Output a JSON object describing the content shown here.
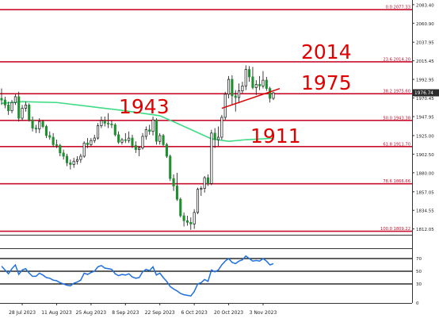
{
  "chart_data": [
    {
      "type": "candlestick",
      "title": "",
      "instrument": "",
      "y_axis_ticks": [
        "2083.40",
        "2060.90",
        "2037.95",
        "2015.45",
        "1992.95",
        "1970.45",
        "1947.95",
        "1925.00",
        "1902.50",
        "1880.00",
        "1857.05",
        "1834.55",
        "1812.05"
      ],
      "ylim": [
        1805,
        2089
      ],
      "current_price_label": "1976.74",
      "current_price": 1976.74,
      "x_axis_labels": [
        "28 Jul 2023",
        "11 Aug 2023",
        "25 Aug 2023",
        "8 Sep 2023",
        "22 Sep 2023",
        "6 Oct 2023",
        "20 Oct 2023",
        "3 Nov 2023"
      ],
      "x_axis_dates": [
        "2023-07-28",
        "2023-08-11",
        "2023-08-25",
        "2023-09-08",
        "2023-09-22",
        "2023-10-06",
        "2023-10-20",
        "2023-11-03"
      ],
      "fibonacci_levels": [
        {
          "label": "0.0 2077.33",
          "value": 2077.33
        },
        {
          "label": "23.6 2014.20",
          "value": 2014.2
        },
        {
          "label": "38.2 1975.60",
          "value": 1975.6
        },
        {
          "label": "50.0 1943.38",
          "value": 1943.38
        },
        {
          "label": "61.8 1911.70",
          "value": 1911.7
        },
        {
          "label": "78.6 1866.66",
          "value": 1866.66
        },
        {
          "label": "100.0 1809.22",
          "value": 1809.22
        }
      ],
      "annotations": [
        {
          "text": "2014",
          "value": 2014
        },
        {
          "text": "1975",
          "value": 1975
        },
        {
          "text": "1943",
          "value": 1943
        },
        {
          "text": "1911",
          "value": 1911
        }
      ],
      "moving_average_color": "#3ddc84",
      "up_color": "#1e8f2e",
      "down_color": "#1e8f2e",
      "level_color": "#c8102e",
      "annotation_color": "#e00000",
      "trendline": {
        "start": {
          "date": "2023-10-18",
          "value": 1958
        },
        "end": {
          "date": "2023-11-08",
          "value": 1978
        },
        "color": "#e00000"
      },
      "candles": [
        {
          "d": "2023-07-20",
          "o": 1970,
          "h": 1982,
          "l": 1962,
          "c": 1968
        },
        {
          "d": "2023-07-21",
          "o": 1968,
          "h": 1972,
          "l": 1958,
          "c": 1962
        },
        {
          "d": "2023-07-24",
          "o": 1962,
          "h": 1966,
          "l": 1950,
          "c": 1955
        },
        {
          "d": "2023-07-25",
          "o": 1955,
          "h": 1968,
          "l": 1952,
          "c": 1965
        },
        {
          "d": "2023-07-26",
          "o": 1965,
          "h": 1975,
          "l": 1962,
          "c": 1972
        },
        {
          "d": "2023-07-27",
          "o": 1972,
          "h": 1978,
          "l": 1942,
          "c": 1946
        },
        {
          "d": "2023-07-28",
          "o": 1946,
          "h": 1962,
          "l": 1943,
          "c": 1958
        },
        {
          "d": "2023-07-31",
          "o": 1958,
          "h": 1966,
          "l": 1954,
          "c": 1962
        },
        {
          "d": "2023-08-01",
          "o": 1962,
          "h": 1964,
          "l": 1942,
          "c": 1944
        },
        {
          "d": "2023-08-02",
          "o": 1944,
          "h": 1948,
          "l": 1930,
          "c": 1934
        },
        {
          "d": "2023-08-03",
          "o": 1934,
          "h": 1938,
          "l": 1928,
          "c": 1933
        },
        {
          "d": "2023-08-04",
          "o": 1933,
          "h": 1946,
          "l": 1928,
          "c": 1942
        },
        {
          "d": "2023-08-07",
          "o": 1942,
          "h": 1944,
          "l": 1934,
          "c": 1936
        },
        {
          "d": "2023-08-08",
          "o": 1936,
          "h": 1938,
          "l": 1922,
          "c": 1925
        },
        {
          "d": "2023-08-09",
          "o": 1925,
          "h": 1930,
          "l": 1920,
          "c": 1923
        },
        {
          "d": "2023-08-10",
          "o": 1923,
          "h": 1928,
          "l": 1911,
          "c": 1914
        },
        {
          "d": "2023-08-11",
          "o": 1914,
          "h": 1920,
          "l": 1910,
          "c": 1913
        },
        {
          "d": "2023-08-14",
          "o": 1913,
          "h": 1915,
          "l": 1900,
          "c": 1904
        },
        {
          "d": "2023-08-15",
          "o": 1904,
          "h": 1908,
          "l": 1896,
          "c": 1900
        },
        {
          "d": "2023-08-16",
          "o": 1900,
          "h": 1903,
          "l": 1888,
          "c": 1892
        },
        {
          "d": "2023-08-17",
          "o": 1892,
          "h": 1896,
          "l": 1884,
          "c": 1890
        },
        {
          "d": "2023-08-18",
          "o": 1890,
          "h": 1898,
          "l": 1886,
          "c": 1894
        },
        {
          "d": "2023-08-21",
          "o": 1894,
          "h": 1900,
          "l": 1890,
          "c": 1896
        },
        {
          "d": "2023-08-22",
          "o": 1896,
          "h": 1903,
          "l": 1892,
          "c": 1900
        },
        {
          "d": "2023-08-23",
          "o": 1900,
          "h": 1918,
          "l": 1898,
          "c": 1916
        },
        {
          "d": "2023-08-24",
          "o": 1916,
          "h": 1922,
          "l": 1910,
          "c": 1914
        },
        {
          "d": "2023-08-25",
          "o": 1914,
          "h": 1922,
          "l": 1912,
          "c": 1919
        },
        {
          "d": "2023-08-28",
          "o": 1919,
          "h": 1926,
          "l": 1916,
          "c": 1922
        },
        {
          "d": "2023-08-29",
          "o": 1922,
          "h": 1940,
          "l": 1920,
          "c": 1937
        },
        {
          "d": "2023-08-30",
          "o": 1937,
          "h": 1948,
          "l": 1934,
          "c": 1943
        },
        {
          "d": "2023-08-31",
          "o": 1943,
          "h": 1948,
          "l": 1936,
          "c": 1940
        },
        {
          "d": "2023-09-01",
          "o": 1940,
          "h": 1952,
          "l": 1934,
          "c": 1939
        },
        {
          "d": "2023-09-04",
          "o": 1939,
          "h": 1943,
          "l": 1934,
          "c": 1938
        },
        {
          "d": "2023-09-05",
          "o": 1938,
          "h": 1940,
          "l": 1924,
          "c": 1926
        },
        {
          "d": "2023-09-06",
          "o": 1926,
          "h": 1930,
          "l": 1915,
          "c": 1917
        },
        {
          "d": "2023-09-07",
          "o": 1917,
          "h": 1922,
          "l": 1914,
          "c": 1920
        },
        {
          "d": "2023-09-08",
          "o": 1920,
          "h": 1928,
          "l": 1916,
          "c": 1919
        },
        {
          "d": "2023-09-11",
          "o": 1919,
          "h": 1930,
          "l": 1916,
          "c": 1922
        },
        {
          "d": "2023-09-12",
          "o": 1922,
          "h": 1926,
          "l": 1910,
          "c": 1913
        },
        {
          "d": "2023-09-13",
          "o": 1913,
          "h": 1918,
          "l": 1904,
          "c": 1908
        },
        {
          "d": "2023-09-14",
          "o": 1908,
          "h": 1912,
          "l": 1900,
          "c": 1910
        },
        {
          "d": "2023-09-15",
          "o": 1910,
          "h": 1928,
          "l": 1908,
          "c": 1924
        },
        {
          "d": "2023-09-18",
          "o": 1924,
          "h": 1936,
          "l": 1920,
          "c": 1932
        },
        {
          "d": "2023-09-19",
          "o": 1932,
          "h": 1938,
          "l": 1926,
          "c": 1930
        },
        {
          "d": "2023-09-20",
          "o": 1930,
          "h": 1948,
          "l": 1925,
          "c": 1944
        },
        {
          "d": "2023-09-21",
          "o": 1944,
          "h": 1946,
          "l": 1914,
          "c": 1918
        },
        {
          "d": "2023-09-22",
          "o": 1918,
          "h": 1928,
          "l": 1914,
          "c": 1925
        },
        {
          "d": "2023-09-25",
          "o": 1925,
          "h": 1927,
          "l": 1912,
          "c": 1914
        },
        {
          "d": "2023-09-26",
          "o": 1914,
          "h": 1916,
          "l": 1898,
          "c": 1900
        },
        {
          "d": "2023-09-27",
          "o": 1900,
          "h": 1902,
          "l": 1870,
          "c": 1873
        },
        {
          "d": "2023-09-28",
          "o": 1873,
          "h": 1878,
          "l": 1858,
          "c": 1864
        },
        {
          "d": "2023-09-29",
          "o": 1864,
          "h": 1880,
          "l": 1846,
          "c": 1848
        },
        {
          "d": "2023-10-02",
          "o": 1848,
          "h": 1850,
          "l": 1826,
          "c": 1828
        },
        {
          "d": "2023-10-03",
          "o": 1828,
          "h": 1832,
          "l": 1815,
          "c": 1822
        },
        {
          "d": "2023-10-04",
          "o": 1822,
          "h": 1828,
          "l": 1816,
          "c": 1820
        },
        {
          "d": "2023-10-05",
          "o": 1820,
          "h": 1826,
          "l": 1811,
          "c": 1818
        },
        {
          "d": "2023-10-06",
          "o": 1818,
          "h": 1836,
          "l": 1812,
          "c": 1832
        },
        {
          "d": "2023-10-09",
          "o": 1832,
          "h": 1862,
          "l": 1830,
          "c": 1860
        },
        {
          "d": "2023-10-10",
          "o": 1860,
          "h": 1864,
          "l": 1852,
          "c": 1861
        },
        {
          "d": "2023-10-11",
          "o": 1861,
          "h": 1876,
          "l": 1856,
          "c": 1874
        },
        {
          "d": "2023-10-12",
          "o": 1874,
          "h": 1878,
          "l": 1864,
          "c": 1867
        },
        {
          "d": "2023-10-13",
          "o": 1867,
          "h": 1932,
          "l": 1865,
          "c": 1928
        },
        {
          "d": "2023-10-16",
          "o": 1928,
          "h": 1934,
          "l": 1910,
          "c": 1920
        },
        {
          "d": "2023-10-17",
          "o": 1920,
          "h": 1936,
          "l": 1912,
          "c": 1923
        },
        {
          "d": "2023-10-18",
          "o": 1923,
          "h": 1950,
          "l": 1920,
          "c": 1947
        },
        {
          "d": "2023-10-19",
          "o": 1947,
          "h": 1978,
          "l": 1944,
          "c": 1975
        },
        {
          "d": "2023-10-20",
          "o": 1975,
          "h": 1997,
          "l": 1970,
          "c": 1993
        },
        {
          "d": "2023-10-23",
          "o": 1993,
          "h": 1998,
          "l": 1962,
          "c": 1973
        },
        {
          "d": "2023-10-24",
          "o": 1973,
          "h": 1980,
          "l": 1954,
          "c": 1971
        },
        {
          "d": "2023-10-25",
          "o": 1971,
          "h": 1988,
          "l": 1964,
          "c": 1979
        },
        {
          "d": "2023-10-26",
          "o": 1979,
          "h": 1990,
          "l": 1976,
          "c": 1985
        },
        {
          "d": "2023-10-27",
          "o": 1985,
          "h": 2010,
          "l": 1980,
          "c": 2005
        },
        {
          "d": "2023-10-30",
          "o": 2005,
          "h": 2009,
          "l": 1990,
          "c": 1996
        },
        {
          "d": "2023-10-31",
          "o": 1996,
          "h": 2008,
          "l": 1981,
          "c": 1983
        },
        {
          "d": "2023-11-01",
          "o": 1983,
          "h": 1992,
          "l": 1974,
          "c": 1987
        },
        {
          "d": "2023-11-02",
          "o": 1987,
          "h": 1997,
          "l": 1980,
          "c": 1985
        },
        {
          "d": "2023-11-03",
          "o": 1985,
          "h": 2003,
          "l": 1982,
          "c": 1992
        },
        {
          "d": "2023-11-06",
          "o": 1992,
          "h": 1996,
          "l": 1979,
          "c": 1982
        },
        {
          "d": "2023-11-07",
          "o": 1982,
          "h": 1984,
          "l": 1965,
          "c": 1970
        },
        {
          "d": "2023-11-08",
          "o": 1970,
          "h": 1978,
          "l": 1968,
          "c": 1976.74
        }
      ],
      "moving_average": [
        {
          "d": "2023-07-20",
          "v": 1964
        },
        {
          "d": "2023-07-28",
          "v": 1966
        },
        {
          "d": "2023-08-11",
          "v": 1965
        },
        {
          "d": "2023-08-25",
          "v": 1960
        },
        {
          "d": "2023-09-08",
          "v": 1955
        },
        {
          "d": "2023-09-22",
          "v": 1949
        },
        {
          "d": "2023-10-02",
          "v": 1938
        },
        {
          "d": "2023-10-13",
          "v": 1921
        },
        {
          "d": "2023-10-20",
          "v": 1918
        },
        {
          "d": "2023-10-27",
          "v": 1920
        },
        {
          "d": "2023-11-03",
          "v": 1921
        },
        {
          "d": "2023-11-08",
          "v": 1922
        }
      ]
    },
    {
      "type": "line",
      "title": "",
      "y_axis_ticks": [
        "70",
        "50",
        "30",
        "0"
      ],
      "ylim": [
        0,
        80
      ],
      "reference_levels": [
        70,
        50,
        30
      ],
      "line_color": "#1e6fe0",
      "values": [
        {
          "d": "2023-07-20",
          "v": 58
        },
        {
          "d": "2023-07-21",
          "v": 52
        },
        {
          "d": "2023-07-24",
          "v": 46
        },
        {
          "d": "2023-07-25",
          "v": 54
        },
        {
          "d": "2023-07-26",
          "v": 60
        },
        {
          "d": "2023-07-27",
          "v": 45
        },
        {
          "d": "2023-07-28",
          "v": 52
        },
        {
          "d": "2023-07-31",
          "v": 54
        },
        {
          "d": "2023-08-01",
          "v": 47
        },
        {
          "d": "2023-08-02",
          "v": 42
        },
        {
          "d": "2023-08-03",
          "v": 42
        },
        {
          "d": "2023-08-04",
          "v": 47
        },
        {
          "d": "2023-08-07",
          "v": 44
        },
        {
          "d": "2023-08-08",
          "v": 40
        },
        {
          "d": "2023-08-09",
          "v": 39
        },
        {
          "d": "2023-08-10",
          "v": 36
        },
        {
          "d": "2023-08-11",
          "v": 35
        },
        {
          "d": "2023-08-14",
          "v": 32
        },
        {
          "d": "2023-08-15",
          "v": 30
        },
        {
          "d": "2023-08-16",
          "v": 28
        },
        {
          "d": "2023-08-17",
          "v": 27
        },
        {
          "d": "2023-08-18",
          "v": 31
        },
        {
          "d": "2023-08-21",
          "v": 33
        },
        {
          "d": "2023-08-22",
          "v": 36
        },
        {
          "d": "2023-08-23",
          "v": 47
        },
        {
          "d": "2023-08-24",
          "v": 45
        },
        {
          "d": "2023-08-25",
          "v": 48
        },
        {
          "d": "2023-08-28",
          "v": 50
        },
        {
          "d": "2023-08-29",
          "v": 57
        },
        {
          "d": "2023-08-30",
          "v": 59
        },
        {
          "d": "2023-08-31",
          "v": 55
        },
        {
          "d": "2023-09-01",
          "v": 54
        },
        {
          "d": "2023-09-04",
          "v": 53
        },
        {
          "d": "2023-09-05",
          "v": 46
        },
        {
          "d": "2023-09-06",
          "v": 43
        },
        {
          "d": "2023-09-07",
          "v": 45
        },
        {
          "d": "2023-09-08",
          "v": 44
        },
        {
          "d": "2023-09-11",
          "v": 46
        },
        {
          "d": "2023-09-12",
          "v": 41
        },
        {
          "d": "2023-09-13",
          "v": 39
        },
        {
          "d": "2023-09-14",
          "v": 40
        },
        {
          "d": "2023-09-15",
          "v": 49
        },
        {
          "d": "2023-09-18",
          "v": 53
        },
        {
          "d": "2023-09-19",
          "v": 51
        },
        {
          "d": "2023-09-20",
          "v": 57
        },
        {
          "d": "2023-09-21",
          "v": 44
        },
        {
          "d": "2023-09-22",
          "v": 47
        },
        {
          "d": "2023-09-25",
          "v": 40
        },
        {
          "d": "2023-09-26",
          "v": 34
        },
        {
          "d": "2023-09-27",
          "v": 26
        },
        {
          "d": "2023-09-28",
          "v": 22
        },
        {
          "d": "2023-09-29",
          "v": 19
        },
        {
          "d": "2023-10-02",
          "v": 15
        },
        {
          "d": "2023-10-03",
          "v": 13
        },
        {
          "d": "2023-10-04",
          "v": 12
        },
        {
          "d": "2023-10-05",
          "v": 11
        },
        {
          "d": "2023-10-06",
          "v": 18
        },
        {
          "d": "2023-10-09",
          "v": 30
        },
        {
          "d": "2023-10-10",
          "v": 32
        },
        {
          "d": "2023-10-11",
          "v": 37
        },
        {
          "d": "2023-10-12",
          "v": 34
        },
        {
          "d": "2023-10-13",
          "v": 52
        },
        {
          "d": "2023-10-16",
          "v": 49
        },
        {
          "d": "2023-10-17",
          "v": 52
        },
        {
          "d": "2023-10-18",
          "v": 60
        },
        {
          "d": "2023-10-19",
          "v": 66
        },
        {
          "d": "2023-10-20",
          "v": 70
        },
        {
          "d": "2023-10-23",
          "v": 64
        },
        {
          "d": "2023-10-24",
          "v": 62
        },
        {
          "d": "2023-10-25",
          "v": 66
        },
        {
          "d": "2023-10-26",
          "v": 68
        },
        {
          "d": "2023-10-27",
          "v": 74
        },
        {
          "d": "2023-10-30",
          "v": 70
        },
        {
          "d": "2023-10-31",
          "v": 66
        },
        {
          "d": "2023-11-01",
          "v": 67
        },
        {
          "d": "2023-11-02",
          "v": 66
        },
        {
          "d": "2023-11-03",
          "v": 70
        },
        {
          "d": "2023-11-06",
          "v": 66
        },
        {
          "d": "2023-11-07",
          "v": 60
        },
        {
          "d": "2023-11-08",
          "v": 62
        }
      ]
    }
  ]
}
